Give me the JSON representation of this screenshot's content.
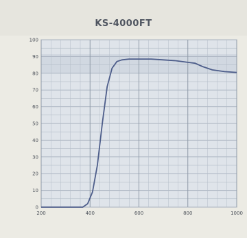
{
  "chart_data": {
    "type": "line",
    "title": "KS-4000FT",
    "xlabel": "",
    "ylabel": "",
    "xlim": [
      200,
      1000
    ],
    "ylim": [
      0,
      100
    ],
    "x_ticks": [
      "200",
      "400",
      "600",
      "800",
      "1000"
    ],
    "y_ticks": [
      "0",
      "10",
      "20",
      "30",
      "40",
      "50",
      "60",
      "70",
      "80",
      "90",
      "100"
    ],
    "grid": true,
    "series": [
      {
        "x": [
          200,
          370,
          390,
          410,
          430,
          450,
          470,
          490,
          510,
          530,
          560,
          600,
          650,
          700,
          750,
          800,
          830,
          860,
          900,
          950,
          1000
        ],
        "y": [
          0,
          0,
          2,
          9,
          25,
          50,
          72,
          83,
          87,
          88,
          88.5,
          88.5,
          88.5,
          88,
          87.5,
          86.5,
          86,
          84,
          82,
          81,
          80.5
        ],
        "color": "#4d5d8a"
      }
    ]
  }
}
